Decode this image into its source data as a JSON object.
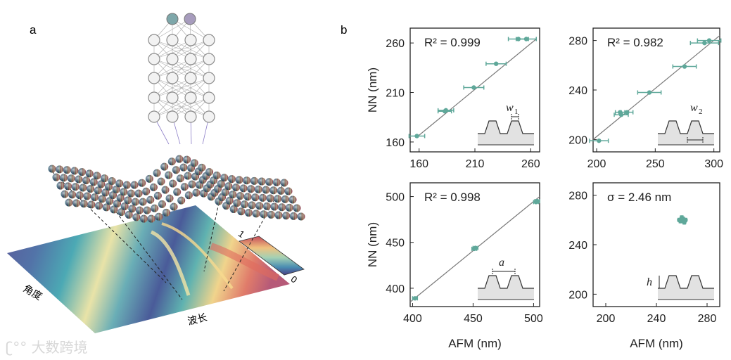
{
  "figure": {
    "panel_a_label": "a",
    "panel_b_label": "b",
    "heatmap_xlabel": "波长",
    "heatmap_ylabel": "角度",
    "colorbar_max": "1",
    "colorbar_min": "0",
    "watermark": "大数跨境",
    "colors": {
      "accent": "#5fa89a",
      "fit_line": "#7a7a7a",
      "input_node": "#7ea7aa",
      "output_node": "#a79cbd",
      "hidden_node": "#f2f2f2",
      "net_edge": "#a9a9a9"
    }
  },
  "chart_data": [
    {
      "type": "scatter",
      "name": "w1",
      "xlabel": "",
      "ylabel": "NN (nm)",
      "xlim": [
        152,
        268
      ],
      "ylim": [
        150,
        275
      ],
      "xticks": [
        160,
        210,
        260
      ],
      "yticks": [
        160,
        210,
        260
      ],
      "annotation": "R² = 0.999",
      "inset_label": "w",
      "inset_subscript": "1",
      "fit_line": [
        [
          158,
          165
        ],
        [
          265,
          264
        ]
      ],
      "points": [
        [
          158,
          166
        ],
        [
          183,
          191
        ],
        [
          184,
          192
        ],
        [
          209,
          215
        ],
        [
          229,
          239
        ],
        [
          249,
          264
        ],
        [
          256,
          264
        ]
      ],
      "xerr": [
        7,
        6,
        7,
        9,
        9,
        9,
        9
      ]
    },
    {
      "type": "scatter",
      "name": "w2",
      "xlabel": "",
      "ylabel": "",
      "xlim": [
        197,
        305
      ],
      "ylim": [
        190,
        290
      ],
      "xticks": [
        200,
        250,
        300
      ],
      "yticks": [
        200,
        240,
        280
      ],
      "annotation": "R² = 0.982",
      "inset_label": "w",
      "inset_subscript": "2",
      "fit_line": [
        [
          197,
          200
        ],
        [
          305,
          284
        ]
      ],
      "points": [
        [
          202,
          199
        ],
        [
          220,
          222
        ],
        [
          221,
          220
        ],
        [
          226,
          222
        ],
        [
          245,
          238
        ],
        [
          275,
          259
        ],
        [
          292,
          278
        ],
        [
          296,
          280
        ]
      ],
      "xerr": [
        8,
        4,
        6,
        5,
        10,
        10,
        12,
        10
      ]
    },
    {
      "type": "scatter",
      "name": "a",
      "xlabel": "AFM (nm)",
      "ylabel": "NN (nm)",
      "xlim": [
        398,
        505
      ],
      "ylim": [
        380,
        515
      ],
      "xticks": [
        400,
        450,
        500
      ],
      "yticks": [
        400,
        450,
        500
      ],
      "annotation": "R² = 0.998",
      "inset_label": "a",
      "inset_subscript": "",
      "fit_line": [
        [
          398,
          385
        ],
        [
          505,
          500
        ]
      ],
      "points": [
        [
          402,
          389
        ],
        [
          451,
          443
        ],
        [
          452,
          444
        ],
        [
          502,
          494
        ],
        [
          503,
          495
        ]
      ],
      "xerr": [
        2,
        2,
        2,
        2,
        2
      ]
    },
    {
      "type": "scatter",
      "name": "h",
      "xlabel": "AFM (nm)",
      "ylabel": "",
      "xlim": [
        190,
        290
      ],
      "ylim": [
        190,
        290
      ],
      "xticks": [
        200,
        240,
        280
      ],
      "yticks": [
        200,
        240,
        280
      ],
      "annotation": "σ = 2.46 nm",
      "inset_label": "h",
      "inset_subscript": "",
      "fit_line": [],
      "points": [
        [
          259,
          259
        ],
        [
          261,
          261
        ],
        [
          262,
          258
        ],
        [
          260,
          262
        ],
        [
          263,
          260
        ],
        [
          258,
          260
        ]
      ],
      "xerr": [
        1,
        1,
        1,
        1,
        1,
        1
      ]
    }
  ]
}
